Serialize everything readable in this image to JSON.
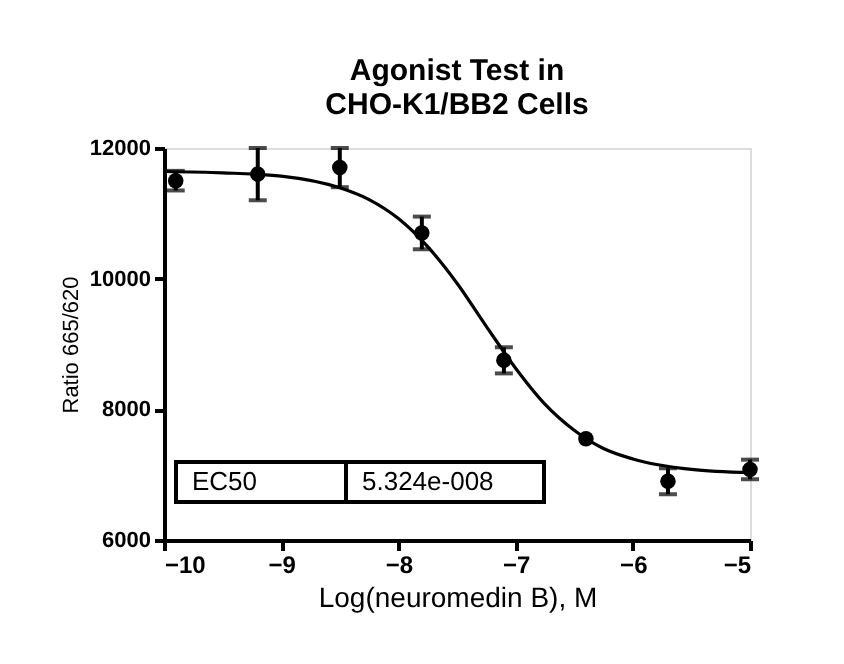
{
  "chart_data": {
    "type": "scatter",
    "title": [
      "Agonist Test in",
      "CHO-K1/BB2 Cells"
    ],
    "xlabel": "Log(neuromedin B), M",
    "ylabel": "Ratio 665/620",
    "xlim": [
      -10,
      -5
    ],
    "xticks": [
      -10,
      -9,
      -8,
      -7,
      -6,
      -5
    ],
    "ylim": [
      6000,
      12000
    ],
    "yticks": [
      6000,
      8000,
      10000,
      12000
    ],
    "grid": false,
    "marker": "circle",
    "series": [
      {
        "color": "#000000",
        "x": [
          -9.9,
          -9.2,
          -8.5,
          -7.8,
          -7.1,
          -6.4,
          -5.7,
          -5.0
        ],
        "values": [
          11500,
          11600,
          11700,
          10700,
          8750,
          7550,
          6900,
          7080
        ],
        "errors": [
          150,
          400,
          300,
          250,
          200,
          null,
          200,
          150
        ]
      },
      {
        "type": "line",
        "color": "#000000",
        "line_style": "solid",
        "marker": "none",
        "x": [
          -10,
          -9.5,
          -9,
          -8.5,
          -8.25,
          -8,
          -7.75,
          -7.5,
          -7.25,
          -7,
          -6.75,
          -6.5,
          -6.25,
          -6,
          -5.5,
          -5
        ],
        "values": [
          11640,
          11620,
          11570,
          11390,
          11210,
          10920,
          10490,
          9930,
          9270,
          8630,
          8080,
          7680,
          7400,
          7240,
          7080,
          7030
        ]
      }
    ],
    "annotations": [
      "EC50",
      "5.324e-008"
    ]
  }
}
